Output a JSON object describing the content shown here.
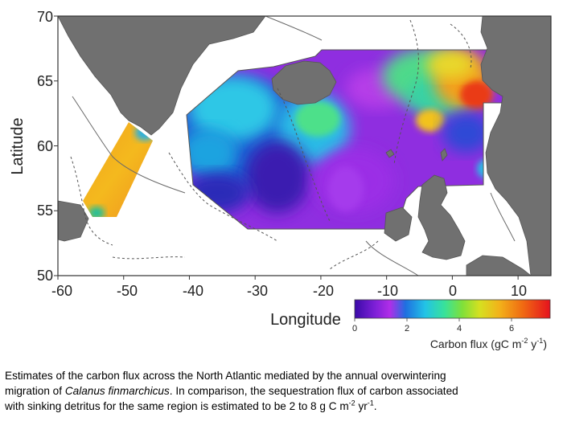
{
  "map": {
    "x_axis_title": "Longitude",
    "y_axis_title": "Latitude",
    "x_ticks": [
      "-60",
      "-50",
      "-40",
      "-30",
      "-20",
      "-10",
      "0",
      "10"
    ],
    "y_ticks": [
      "70",
      "65",
      "60",
      "55",
      "50"
    ],
    "lon_range": [
      -60,
      15
    ],
    "lat_range": [
      50,
      70
    ],
    "colorbar": {
      "label_main": "Carbon flux (gC m",
      "label_exp1": "-2",
      "label_mid": " y",
      "label_exp2": "-1",
      "label_end": ")",
      "ticks": [
        "0",
        "2",
        "4",
        "6"
      ],
      "range": [
        0,
        7.5
      ],
      "colors": [
        "#3a0aa8",
        "#7b1fd6",
        "#b02ee8",
        "#1f6fe0",
        "#22c3e6",
        "#38e29a",
        "#7fe03a",
        "#d6e020",
        "#f2b21a",
        "#f06a12",
        "#e5121e"
      ]
    },
    "colors": {
      "land": "#707070",
      "ocean": "#ffffff",
      "low_flux": "#9a2fe3",
      "mid_flux": "#31c8e8",
      "high_flux": "#f07a1a"
    }
  },
  "caption": {
    "line1": "Estimates of the carbon flux across the North Atlantic mediated by the annual overwintering",
    "line2_pre": "migration of ",
    "line2_species": "Calanus finmarchicus",
    "line2_post": ". In comparison, the sequestration flux of carbon associated",
    "line3_pre": "with sinking detritus for the same region is estimated to be 2 to 8 g C m",
    "line3_exp1": "-2",
    "line3_mid": " yr",
    "line3_exp2": "-1",
    "line3_end": "."
  }
}
